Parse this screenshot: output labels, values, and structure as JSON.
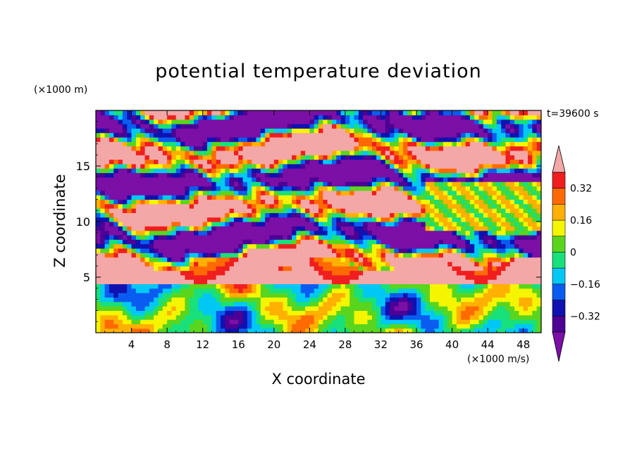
{
  "chart_data": {
    "type": "heatmap",
    "title": "potential temperature deviation",
    "xlabel": "X coordinate",
    "ylabel": "Z coordinate",
    "x_unit": "(×1000 m/s)",
    "y_unit": "(×1000 m)",
    "time_label": "t=39600 s",
    "xlim": [
      0,
      50
    ],
    "ylim": [
      0,
      20
    ],
    "x_ticks": [
      4,
      8,
      12,
      16,
      20,
      24,
      28,
      32,
      36,
      40,
      44,
      48
    ],
    "y_ticks": [
      5,
      10,
      15
    ],
    "colorbar": {
      "levels": [
        -0.4,
        -0.32,
        -0.24,
        -0.16,
        -0.08,
        0,
        0.08,
        0.16,
        0.24,
        0.32,
        0.4
      ],
      "tick_labels": [
        "0.32",
        "0.16",
        "0",
        "−0.16",
        "−0.32"
      ],
      "tick_values": [
        0.32,
        0.16,
        0,
        -0.16,
        -0.32
      ],
      "colors": [
        "#7B0FA6",
        "#4D0094",
        "#0F12B0",
        "#0A5CF0",
        "#00C8F5",
        "#18E07A",
        "#5AD51E",
        "#F5F500",
        "#FFB000",
        "#FF6A00",
        "#F01E1E",
        "#F4A7A7"
      ],
      "extend": "both"
    }
  }
}
